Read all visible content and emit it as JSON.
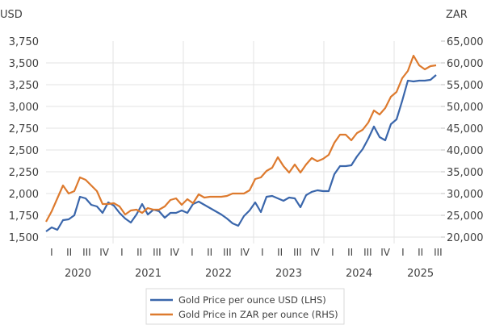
{
  "chart_data": {
    "type": "line",
    "title": "",
    "left_axis": {
      "unit_label": "USD",
      "ticks": [
        "3,750",
        "3,500",
        "3,250",
        "3,000",
        "2,750",
        "2,500",
        "2,250",
        "2,000",
        "1,750",
        "1,500"
      ],
      "tick_values": [
        3750,
        3500,
        3250,
        3000,
        2750,
        2500,
        2250,
        2000,
        1750,
        1500
      ],
      "ylim": [
        1500,
        3750
      ]
    },
    "right_axis": {
      "unit_label": "ZAR",
      "ticks": [
        "65,000",
        "60,000",
        "55,000",
        "50,000",
        "45,000",
        "40,000",
        "35,000",
        "30,000",
        "25,000",
        "20,000"
      ],
      "tick_values": [
        65000,
        60000,
        55000,
        50000,
        45000,
        40000,
        35000,
        30000,
        25000,
        20000
      ],
      "ylim": [
        20000,
        65000
      ]
    },
    "x_axis": {
      "quarter_labels": [
        "I",
        "II",
        "III",
        "IV",
        "I",
        "II",
        "III",
        "IV",
        "I",
        "II",
        "III",
        "IV",
        "I",
        "II",
        "III",
        "IV",
        "I",
        "II",
        "III",
        "IV",
        "I",
        "II",
        "III"
      ],
      "years": [
        "2020",
        "2021",
        "2022",
        "2023",
        "2024",
        "2025"
      ],
      "points_count": 70
    },
    "grid": true,
    "legend_position": "bottom",
    "series": [
      {
        "name": "Gold Price per ounce USD (LHS)",
        "axis": "left",
        "color": "#3a66ab",
        "values": [
          1565,
          1611,
          1583,
          1694,
          1704,
          1750,
          1963,
          1944,
          1870,
          1852,
          1778,
          1898,
          1861,
          1778,
          1713,
          1667,
          1759,
          1880,
          1759,
          1815,
          1796,
          1722,
          1778,
          1778,
          1806,
          1778,
          1880,
          1907,
          1870,
          1833,
          1796,
          1759,
          1713,
          1657,
          1630,
          1741,
          1806,
          1898,
          1787,
          1963,
          1972,
          1944,
          1917,
          1954,
          1944,
          1843,
          1981,
          2019,
          2037,
          2028,
          2028,
          2222,
          2315,
          2315,
          2324,
          2426,
          2509,
          2630,
          2769,
          2648,
          2611,
          2796,
          2852,
          3065,
          3296,
          3287,
          3296,
          3296,
          3306,
          3361
        ]
      },
      {
        "name": "Gold Price in ZAR per ounce (RHS)",
        "axis": "right",
        "color": "#dd7a2e",
        "values": [
          23519,
          25926,
          28889,
          31852,
          30000,
          30556,
          33704,
          33148,
          31852,
          30556,
          27593,
          27593,
          27778,
          27037,
          25185,
          26111,
          26296,
          25556,
          26667,
          26296,
          26296,
          27037,
          28519,
          28889,
          27407,
          28704,
          27778,
          29815,
          29074,
          29259,
          29259,
          29259,
          29444,
          30000,
          30000,
          30000,
          30741,
          33333,
          33704,
          35185,
          35926,
          38333,
          36296,
          34815,
          36667,
          34815,
          36667,
          38148,
          37407,
          37963,
          38889,
          41667,
          43519,
          43519,
          42222,
          43889,
          44630,
          46296,
          49074,
          48148,
          49630,
          52222,
          53333,
          56481,
          58148,
          61667,
          59444,
          58519,
          59259,
          59444
        ]
      }
    ]
  }
}
